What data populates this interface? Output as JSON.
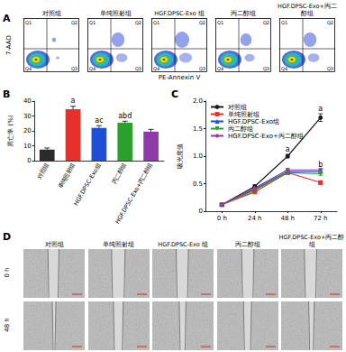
{
  "panels": {
    "A": {
      "label": "A",
      "groups": [
        "对照组",
        "单纯照射组",
        "HGF.DPSC-Exo 组",
        "丙二醇组",
        "HGF.DPSC-Exo+丙二醇组"
      ],
      "x_axis_title": "PE-Annexin V",
      "y_axis_title": "7-AAD",
      "quadrants": [
        "Q1",
        "Q2",
        "Q3",
        "Q4"
      ]
    },
    "D": {
      "label": "D",
      "groups": [
        "对照组",
        "单纯照射组",
        "HGF.DPSC-Exo 组",
        "丙二醇组",
        "HGF.DPSC-Exo+丙二醇组"
      ],
      "rows": [
        "0 h",
        "48 h"
      ]
    }
  },
  "chart_data": [
    {
      "panel_label": "B",
      "type": "bar",
      "y_label": "凋亡率 (%)",
      "categories": [
        "对照组",
        "单纯照射组",
        "HGF.DPSC-Exo组",
        "丙二醇组",
        "HGF.DPSC-Exo+丙二醇组"
      ],
      "values": [
        7.5,
        34.5,
        22,
        25.5,
        19.5
      ],
      "errors": [
        1,
        2,
        1.5,
        1,
        1.5
      ],
      "colors": [
        "#2b2b2b",
        "#e8302a",
        "#1f4fd6",
        "#2ca02c",
        "#8e3aa8"
      ],
      "annotations": [
        {
          "category": "单纯照射组",
          "text": "a"
        },
        {
          "category": "HGF.DPSC-Exo组",
          "text": "ac"
        },
        {
          "category": "丙二醇组",
          "text": "abd"
        }
      ],
      "ylim": [
        0,
        40
      ],
      "yticks": [
        0,
        10,
        20,
        30,
        40
      ],
      "grid": false
    },
    {
      "panel_label": "C",
      "type": "line",
      "y_label": "吸光度值",
      "categories": [
        "0 h",
        "24 h",
        "48 h",
        "72 h"
      ],
      "series": [
        {
          "name": "对照组",
          "color": "#1a1a1a",
          "marker": "circle",
          "values": [
            0.12,
            0.45,
            1.0,
            1.7
          ],
          "errors": [
            0.02,
            0.03,
            0.03,
            0.07
          ]
        },
        {
          "name": "单纯照射组",
          "color": "#e8302a",
          "marker": "square",
          "values": [
            0.12,
            0.35,
            0.7,
            0.52
          ],
          "errors": [
            0.02,
            0.02,
            0.03,
            0.03
          ]
        },
        {
          "name": "HGF.DPSC-Exo组",
          "color": "#1f4fd6",
          "marker": "triangle",
          "values": [
            0.12,
            0.4,
            0.72,
            0.72
          ],
          "errors": [
            0.02,
            0.02,
            0.03,
            0.03
          ]
        },
        {
          "name": "丙二醇组",
          "color": "#2ca02c",
          "marker": "triangle-down",
          "values": [
            0.12,
            0.38,
            0.7,
            0.68
          ],
          "errors": [
            0.02,
            0.02,
            0.03,
            0.03
          ]
        },
        {
          "name": "HGF.DPSC-Exo+丙二醇组",
          "color": "#8e3aa8",
          "marker": "diamond",
          "values": [
            0.12,
            0.42,
            0.75,
            0.75
          ],
          "errors": [
            0.02,
            0.02,
            0.03,
            0.03
          ]
        }
      ],
      "annotations": [
        {
          "category": "48 h",
          "series": "对照组",
          "text": "a"
        },
        {
          "category": "72 h",
          "series": "对照组",
          "text": "a"
        },
        {
          "category": "72 h",
          "series": "HGF.DPSC-Exo组",
          "text": "b"
        }
      ],
      "ylim": [
        0,
        2
      ],
      "yticks": [
        0,
        0.5,
        {
          "value": 1,
          "label": "1.0"
        },
        1.5,
        {
          "value": 2,
          "label": "2.0"
        }
      ],
      "legend": "top-left",
      "grid": false
    }
  ]
}
